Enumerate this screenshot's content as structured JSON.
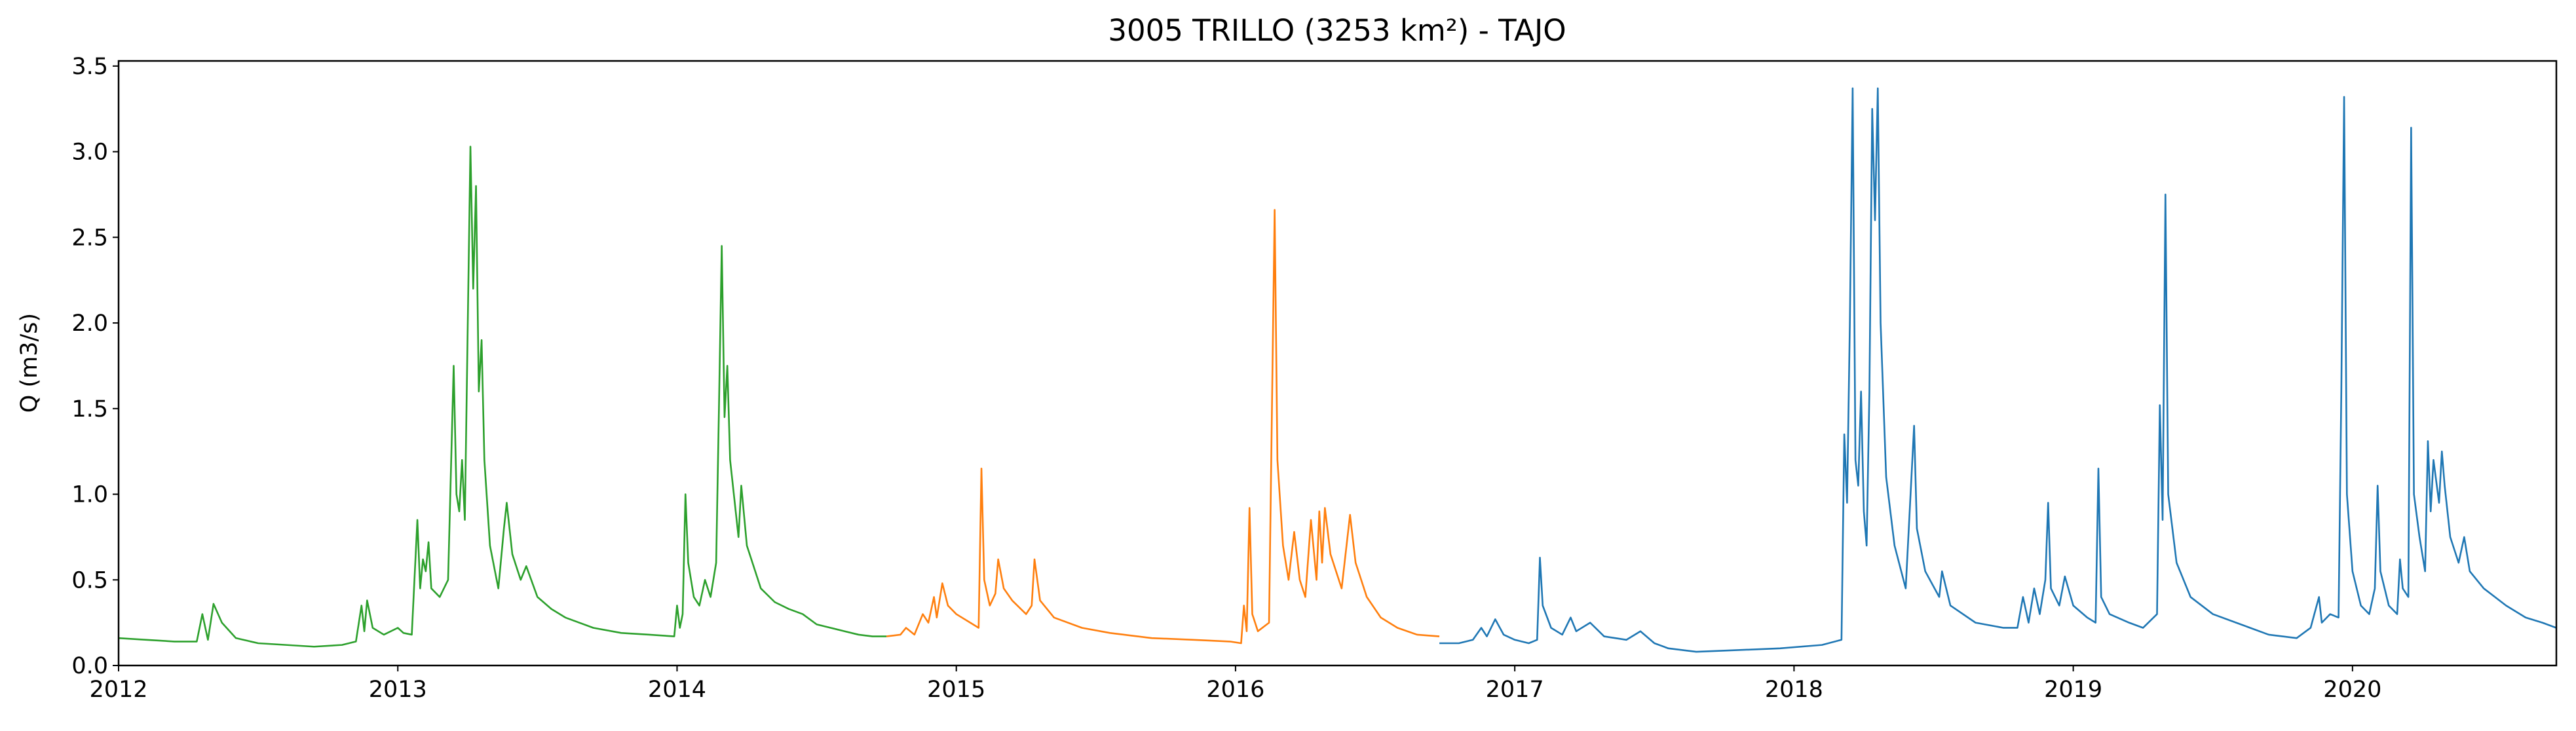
{
  "chart_data": {
    "type": "line",
    "title": "3005 TRILLO (3253 km²) - TAJO",
    "y_label": "Q (m3/s)",
    "xlim": [
      2012,
      2020.73
    ],
    "xticks": [
      2012,
      2013,
      2014,
      2015,
      2016,
      2017,
      2018,
      2019,
      2020
    ],
    "ylim": [
      0,
      3.53
    ],
    "yticks": [
      {
        "value": 0,
        "label": "0.0"
      },
      0.5,
      {
        "value": 1,
        "label": "1.0"
      },
      1.5,
      {
        "value": 2,
        "label": "2.0"
      },
      2.5,
      {
        "value": 3,
        "label": "3.0"
      },
      3.5
    ],
    "grid": false,
    "series": [
      {
        "color": "#2ca02c",
        "x": [
          2012.0,
          2012.1,
          2012.2,
          2012.28,
          2012.3,
          2012.32,
          2012.34,
          2012.37,
          2012.42,
          2012.5,
          2012.6,
          2012.7,
          2012.8,
          2012.85,
          2012.87,
          2012.88,
          2012.89,
          2012.91,
          2012.95,
          2013.0,
          2013.02,
          2013.05,
          2013.07,
          2013.08,
          2013.09,
          2013.1,
          2013.11,
          2013.12,
          2013.15,
          2013.18,
          2013.2,
          2013.21,
          2013.22,
          2013.23,
          2013.24,
          2013.26,
          2013.27,
          2013.28,
          2013.29,
          2013.3,
          2013.31,
          2013.33,
          2013.36,
          2013.38,
          2013.39,
          2013.41,
          2013.44,
          2013.46,
          2013.5,
          2013.55,
          2013.6,
          2013.7,
          2013.8,
          2013.9,
          2013.99,
          2014.0,
          2014.01,
          2014.02,
          2014.03,
          2014.04,
          2014.06,
          2014.08,
          2014.1,
          2014.12,
          2014.14,
          2014.15,
          2014.16,
          2014.17,
          2014.18,
          2014.19,
          2014.21,
          2014.22,
          2014.23,
          2014.25,
          2014.3,
          2014.35,
          2014.4,
          2014.45,
          2014.5,
          2014.55,
          2014.6,
          2014.65,
          2014.7,
          2014.75
        ],
        "values": [
          0.16,
          0.15,
          0.14,
          0.14,
          0.3,
          0.15,
          0.36,
          0.25,
          0.16,
          0.13,
          0.12,
          0.11,
          0.12,
          0.14,
          0.35,
          0.2,
          0.38,
          0.22,
          0.18,
          0.22,
          0.19,
          0.18,
          0.85,
          0.45,
          0.62,
          0.55,
          0.72,
          0.45,
          0.4,
          0.5,
          1.75,
          1.0,
          0.9,
          1.2,
          0.85,
          3.03,
          2.2,
          2.8,
          1.6,
          1.9,
          1.2,
          0.7,
          0.45,
          0.8,
          0.95,
          0.65,
          0.5,
          0.58,
          0.4,
          0.33,
          0.28,
          0.22,
          0.19,
          0.18,
          0.17,
          0.35,
          0.22,
          0.3,
          1.0,
          0.6,
          0.4,
          0.35,
          0.5,
          0.4,
          0.6,
          1.5,
          2.45,
          1.45,
          1.75,
          1.2,
          0.9,
          0.75,
          1.05,
          0.7,
          0.45,
          0.37,
          0.33,
          0.3,
          0.24,
          0.22,
          0.2,
          0.18,
          0.17,
          0.17
        ]
      },
      {
        "color": "#ff7f0e",
        "x": [
          2014.75,
          2014.8,
          2014.82,
          2014.85,
          2014.88,
          2014.9,
          2014.92,
          2014.93,
          2014.95,
          2014.97,
          2015.0,
          2015.05,
          2015.08,
          2015.09,
          2015.1,
          2015.12,
          2015.14,
          2015.15,
          2015.17,
          2015.2,
          2015.25,
          2015.27,
          2015.28,
          2015.3,
          2015.35,
          2015.45,
          2015.55,
          2015.7,
          2015.85,
          2015.98,
          2016.02,
          2016.03,
          2016.04,
          2016.05,
          2016.06,
          2016.08,
          2016.12,
          2016.14,
          2016.15,
          2016.17,
          2016.19,
          2016.21,
          2016.23,
          2016.25,
          2016.27,
          2016.29,
          2016.3,
          2016.31,
          2016.32,
          2016.34,
          2016.36,
          2016.38,
          2016.41,
          2016.43,
          2016.47,
          2016.52,
          2016.58,
          2016.65,
          2016.73
        ],
        "values": [
          0.17,
          0.18,
          0.22,
          0.18,
          0.3,
          0.25,
          0.4,
          0.28,
          0.48,
          0.35,
          0.3,
          0.25,
          0.22,
          1.15,
          0.5,
          0.35,
          0.42,
          0.62,
          0.45,
          0.38,
          0.3,
          0.35,
          0.62,
          0.38,
          0.28,
          0.22,
          0.19,
          0.16,
          0.15,
          0.14,
          0.13,
          0.35,
          0.2,
          0.92,
          0.3,
          0.2,
          0.25,
          2.66,
          1.2,
          0.7,
          0.5,
          0.78,
          0.5,
          0.4,
          0.85,
          0.5,
          0.9,
          0.6,
          0.92,
          0.65,
          0.55,
          0.45,
          0.88,
          0.6,
          0.4,
          0.28,
          0.22,
          0.18,
          0.17
        ]
      },
      {
        "color": "#1f77b4",
        "x": [
          2016.73,
          2016.8,
          2016.85,
          2016.88,
          2016.9,
          2016.93,
          2016.96,
          2017.0,
          2017.05,
          2017.08,
          2017.09,
          2017.1,
          2017.13,
          2017.17,
          2017.2,
          2017.22,
          2017.27,
          2017.32,
          2017.4,
          2017.45,
          2017.5,
          2017.55,
          2017.65,
          2017.8,
          2017.95,
          2018.1,
          2018.17,
          2018.18,
          2018.19,
          2018.2,
          2018.21,
          2018.22,
          2018.23,
          2018.24,
          2018.25,
          2018.26,
          2018.27,
          2018.28,
          2018.29,
          2018.3,
          2018.31,
          2018.33,
          2018.36,
          2018.4,
          2018.43,
          2018.44,
          2018.47,
          2018.52,
          2018.53,
          2018.56,
          2018.65,
          2018.75,
          2018.8,
          2018.82,
          2018.84,
          2018.86,
          2018.88,
          2018.9,
          2018.91,
          2018.92,
          2018.95,
          2018.97,
          2019.0,
          2019.05,
          2019.08,
          2019.09,
          2019.1,
          2019.13,
          2019.2,
          2019.25,
          2019.3,
          2019.31,
          2019.32,
          2019.33,
          2019.34,
          2019.37,
          2019.42,
          2019.5,
          2019.6,
          2019.7,
          2019.8,
          2019.85,
          2019.88,
          2019.89,
          2019.92,
          2019.95,
          2019.96,
          2019.97,
          2019.98,
          2020.0,
          2020.03,
          2020.06,
          2020.08,
          2020.09,
          2020.1,
          2020.13,
          2020.16,
          2020.17,
          2020.18,
          2020.2,
          2020.21,
          2020.22,
          2020.24,
          2020.26,
          2020.27,
          2020.28,
          2020.29,
          2020.31,
          2020.32,
          2020.33,
          2020.35,
          2020.38,
          2020.4,
          2020.42,
          2020.47,
          2020.55,
          2020.62,
          2020.68,
          2020.73
        ],
        "values": [
          0.13,
          0.13,
          0.15,
          0.22,
          0.17,
          0.27,
          0.18,
          0.15,
          0.13,
          0.15,
          0.63,
          0.35,
          0.22,
          0.18,
          0.28,
          0.2,
          0.25,
          0.17,
          0.15,
          0.2,
          0.13,
          0.1,
          0.08,
          0.09,
          0.1,
          0.12,
          0.15,
          1.35,
          0.95,
          2.0,
          3.37,
          1.2,
          1.05,
          1.6,
          0.9,
          0.7,
          1.6,
          3.25,
          2.6,
          3.37,
          2.0,
          1.1,
          0.7,
          0.45,
          1.4,
          0.8,
          0.55,
          0.4,
          0.55,
          0.35,
          0.25,
          0.22,
          0.22,
          0.4,
          0.25,
          0.45,
          0.3,
          0.5,
          0.95,
          0.45,
          0.35,
          0.52,
          0.35,
          0.28,
          0.25,
          1.15,
          0.4,
          0.3,
          0.25,
          0.22,
          0.3,
          1.52,
          0.85,
          2.75,
          1.0,
          0.6,
          0.4,
          0.3,
          0.24,
          0.18,
          0.16,
          0.22,
          0.4,
          0.25,
          0.3,
          0.28,
          1.6,
          3.32,
          1.0,
          0.55,
          0.35,
          0.3,
          0.45,
          1.05,
          0.55,
          0.35,
          0.3,
          0.62,
          0.45,
          0.4,
          3.14,
          1.0,
          0.75,
          0.55,
          1.31,
          0.9,
          1.2,
          0.95,
          1.25,
          1.05,
          0.75,
          0.6,
          0.75,
          0.55,
          0.45,
          0.35,
          0.28,
          0.25,
          0.22
        ]
      }
    ]
  }
}
